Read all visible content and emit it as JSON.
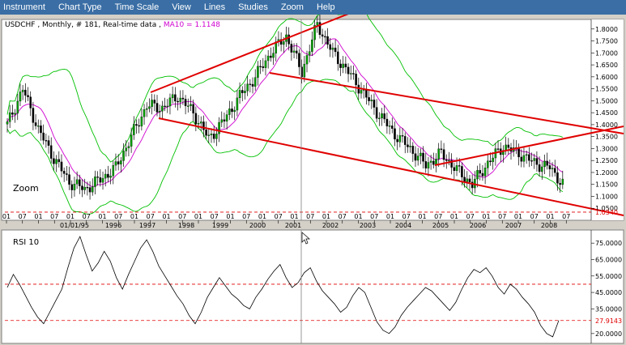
{
  "menu": [
    "Instrument",
    "Chart Type",
    "Time Scale",
    "View",
    "Lines",
    "Studies",
    "Zoom",
    "Help"
  ],
  "price_panel": {
    "header_main": "USDCHF , Monthly, # 181, Real-time data ,",
    "header_ma": "MA10 = 1.1148",
    "zoom_label": "Zoom",
    "last_price_label": "1.0340"
  },
  "rsi_panel": {
    "title": "RSI 10",
    "last_value_label": "27.9143"
  },
  "colors": {
    "menubar": "#3a6ea5",
    "candle_up": "#00a000",
    "candle_down": "#000000",
    "bollinger": "#00c000",
    "ma": "#d000d0",
    "trendline": "#e00000",
    "crosshair": "#808080"
  },
  "chart_data": [
    {
      "type": "candlestick",
      "x_ticks": [
        "01",
        "07",
        "01",
        "07",
        "01",
        "07",
        "01",
        "07",
        "01",
        "07",
        "01",
        "07",
        "01",
        "07",
        "01",
        "07",
        "01",
        "07",
        "01",
        "07",
        "01",
        "07",
        "01",
        "07",
        "01",
        "07",
        "01",
        "07",
        "01",
        "07",
        "01",
        "07",
        "01",
        "07",
        "01",
        "07"
      ],
      "x_year_labels": [
        "01/01/95",
        "1996",
        "1997",
        "1998",
        "1999",
        "2000",
        "2001",
        "2002",
        "2003",
        "2004",
        "2005",
        "2006",
        "2007",
        "2008"
      ],
      "y_tick_labels": [
        "1.8000",
        "1.7500",
        "1.7000",
        "1.6500",
        "1.6000",
        "1.5500",
        "1.5000",
        "1.4500",
        "1.4000",
        "1.3500",
        "1.3000",
        "1.2500",
        "1.2000",
        "1.1500",
        "1.1000",
        "1.0500"
      ],
      "ylim": [
        1.0,
        1.84
      ],
      "horizontal_levels": [
        1.034
      ],
      "series": [
        {
          "name": "USDCHF",
          "monthly_close": [
            1.4,
            1.55,
            1.38,
            1.26,
            1.16,
            1.13,
            1.17,
            1.22,
            1.35,
            1.48,
            1.47,
            1.52,
            1.45,
            1.34,
            1.42,
            1.52,
            1.6,
            1.7,
            1.77,
            1.62,
            1.82,
            1.7,
            1.62,
            1.53,
            1.44,
            1.36,
            1.3,
            1.23,
            1.28,
            1.21,
            1.15,
            1.24,
            1.31,
            1.28,
            1.24,
            1.22,
            1.14,
            1.03
          ]
        },
        {
          "name": "MA10",
          "value": 1.1148
        }
      ],
      "indicators": [
        "Bollinger Bands",
        "MA10",
        "trend channels"
      ]
    },
    {
      "type": "line",
      "title": "RSI 10",
      "y_tick_labels": [
        "75.0000",
        "65.0000",
        "55.0000",
        "45.0000",
        "35.0000",
        "20.0000"
      ],
      "ylim": [
        15,
        81
      ],
      "horizontal_levels": [
        50,
        27.9143
      ],
      "series": [
        {
          "name": "RSI 10",
          "values": [
            48,
            56,
            50,
            43,
            36,
            30,
            26,
            33,
            40,
            47,
            60,
            72,
            79,
            68,
            58,
            63,
            70,
            64,
            54,
            47,
            56,
            64,
            72,
            77,
            70,
            61,
            55,
            49,
            43,
            38,
            31,
            26,
            33,
            42,
            48,
            54,
            49,
            44,
            41,
            37,
            35,
            42,
            47,
            53,
            58,
            62,
            54,
            48,
            51,
            57,
            60,
            52,
            46,
            42,
            38,
            33,
            36,
            43,
            48,
            45,
            36,
            27,
            22,
            20,
            24,
            31,
            36,
            40,
            44,
            48,
            46,
            42,
            38,
            34,
            39,
            47,
            54,
            59,
            57,
            60,
            55,
            48,
            44,
            50,
            47,
            42,
            38,
            33,
            25,
            20,
            18,
            28
          ]
        }
      ]
    }
  ]
}
